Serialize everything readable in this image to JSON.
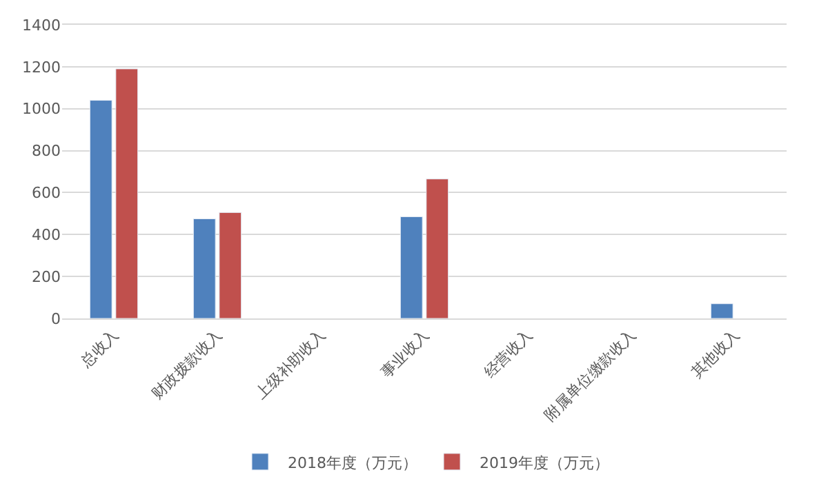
{
  "chart_data": {
    "type": "bar",
    "categories": [
      "总收入",
      "财政拨款收入",
      "上级补助收入",
      "事业收入",
      "经营收入",
      "附属单位缴款收入",
      "其他收入"
    ],
    "series": [
      {
        "name": "2018年度（万元）",
        "color": "#4f81bd",
        "values": [
          1040,
          475,
          null,
          485,
          null,
          null,
          70
        ]
      },
      {
        "name": "2019年度（万元）",
        "color": "#c0504d",
        "values": [
          1190,
          505,
          null,
          665,
          null,
          null,
          null
        ]
      }
    ],
    "ylim": [
      0,
      1400
    ],
    "yticks": [
      0,
      200,
      400,
      600,
      800,
      1000,
      1200,
      1400
    ],
    "grid": "y",
    "legend": "bottom"
  }
}
